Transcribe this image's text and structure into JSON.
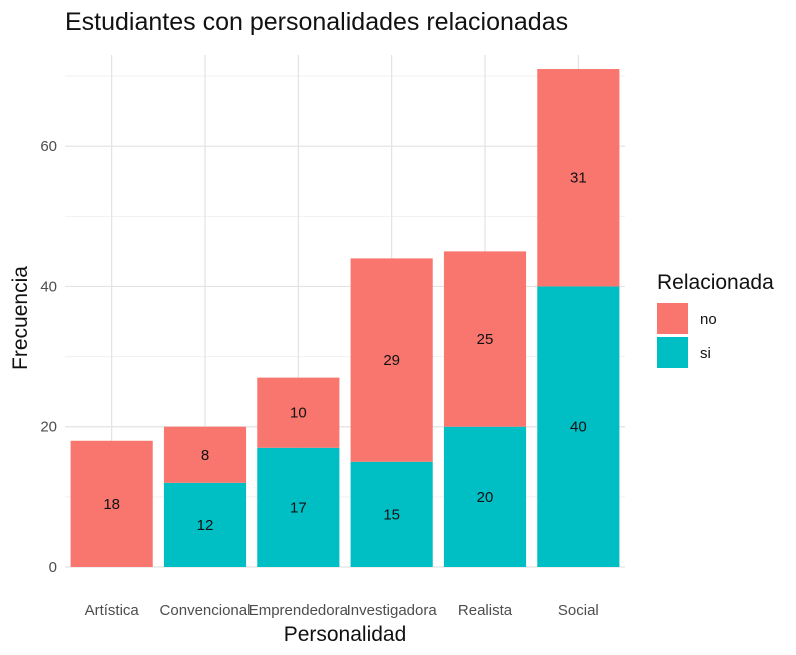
{
  "chart_data": {
    "type": "bar",
    "stacked": true,
    "title": "Estudiantes con personalidades relacionadas",
    "xlabel": "Personalidad",
    "ylabel": "Frecuencia",
    "categories": [
      "Artística",
      "Convencional",
      "Emprendedora",
      "Investigadora",
      "Realista",
      "Social"
    ],
    "series": [
      {
        "name": "si",
        "color": "#00BFC4",
        "values": [
          0,
          12,
          17,
          15,
          20,
          40
        ]
      },
      {
        "name": "no",
        "color": "#F8766D",
        "values": [
          18,
          8,
          10,
          29,
          25,
          31
        ]
      }
    ],
    "ylim": [
      0,
      73
    ],
    "yticks": [
      0,
      20,
      40,
      60
    ],
    "grid": true,
    "legend": {
      "title": "Relacionada",
      "order": [
        "no",
        "si"
      ],
      "position": "right"
    }
  }
}
